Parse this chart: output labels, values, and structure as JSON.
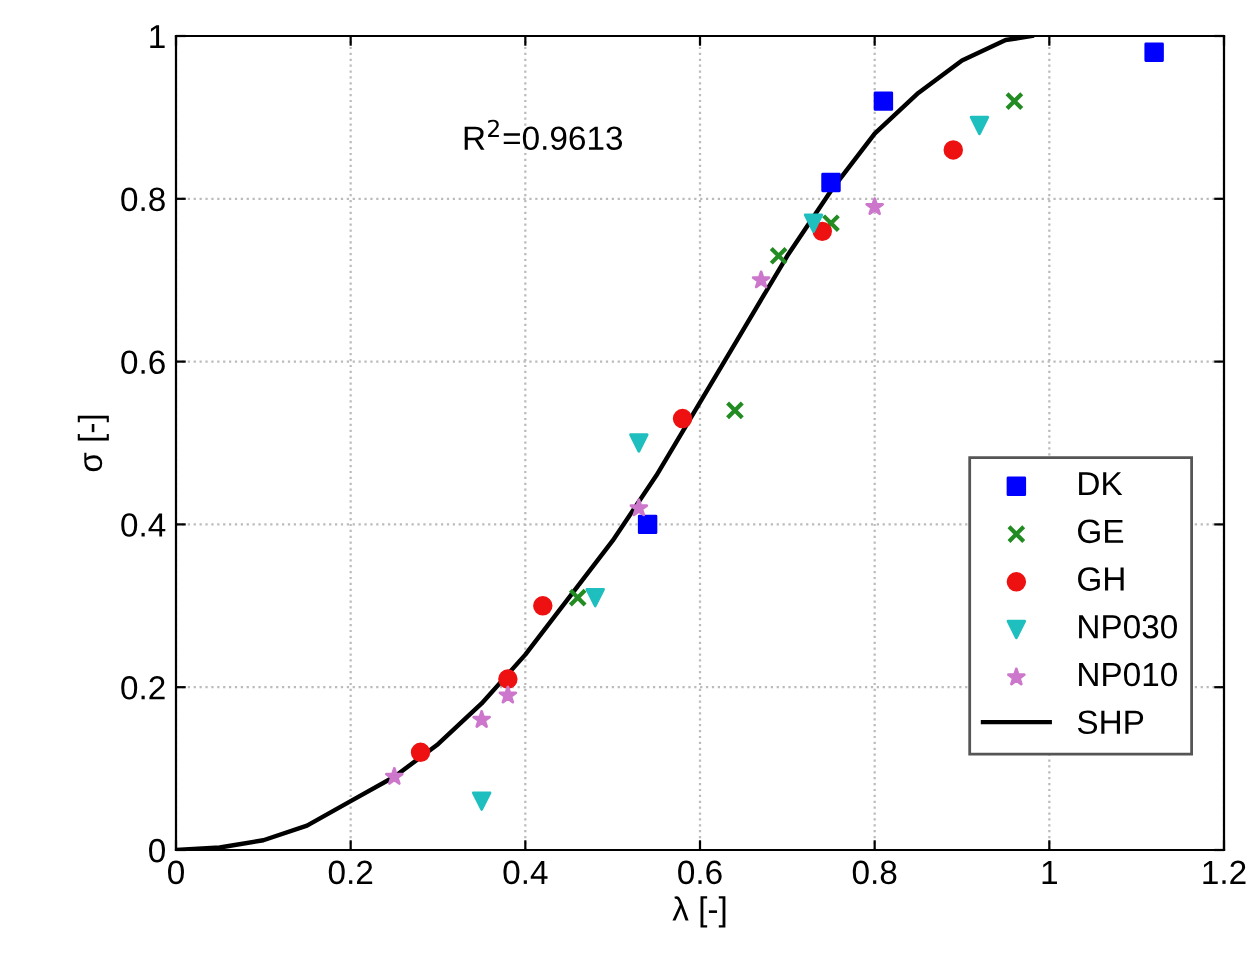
{
  "chart_data": {
    "type": "scatter",
    "xlabel": "λ [-]",
    "ylabel": "σ [-]",
    "annotations": [
      "R$^{2}$=0.9613"
    ],
    "xlim": [
      0,
      1.2
    ],
    "ylim": [
      0,
      1
    ],
    "xticks": [
      0,
      0.2,
      0.4,
      0.6,
      0.8,
      1,
      1.2
    ],
    "yticks": [
      0,
      0.2,
      0.4,
      0.6,
      0.8,
      1
    ],
    "grid": true,
    "legend": "right",
    "series": [
      {
        "name": "DK",
        "color": "#0000ff",
        "marker": "square",
        "x": [
          0.54,
          0.75,
          0.81,
          1.12
        ],
        "values": [
          0.4,
          0.82,
          0.92,
          0.98
        ]
      },
      {
        "name": "GE",
        "color": "#228b22",
        "marker": "cross",
        "x": [
          0.46,
          0.64,
          0.69,
          0.75,
          0.96
        ],
        "values": [
          0.31,
          0.54,
          0.73,
          0.77,
          0.92
        ]
      },
      {
        "name": "GH",
        "color": "#ee1111",
        "marker": "circle",
        "x": [
          0.28,
          0.38,
          0.42,
          0.58,
          0.74,
          0.89
        ],
        "values": [
          0.12,
          0.21,
          0.3,
          0.53,
          0.76,
          0.86
        ]
      },
      {
        "name": "NP030",
        "color": "#1fbfbf",
        "marker": "triangle",
        "x": [
          0.35,
          0.48,
          0.53,
          0.73,
          0.92
        ],
        "values": [
          0.06,
          0.31,
          0.5,
          0.77,
          0.89
        ]
      },
      {
        "name": "NP010",
        "color": "#cc77cc",
        "marker": "star",
        "x": [
          0.25,
          0.35,
          0.38,
          0.53,
          0.67,
          0.8
        ],
        "values": [
          0.09,
          0.16,
          0.19,
          0.42,
          0.7,
          0.79
        ]
      },
      {
        "name": "SHP",
        "type": "line",
        "color": "#000000",
        "marker": "none",
        "line_style": "solid",
        "x": [
          0,
          0.05,
          0.1,
          0.15,
          0.2,
          0.25,
          0.3,
          0.35,
          0.4,
          0.45,
          0.5,
          0.55,
          0.6,
          0.65,
          0.7,
          0.75,
          0.8,
          0.85,
          0.9,
          0.95,
          0.98
        ],
        "values": [
          0,
          0.003,
          0.012,
          0.03,
          0.06,
          0.09,
          0.13,
          0.18,
          0.24,
          0.31,
          0.38,
          0.46,
          0.55,
          0.64,
          0.73,
          0.81,
          0.88,
          0.93,
          0.97,
          0.995,
          1.0
        ]
      }
    ]
  }
}
